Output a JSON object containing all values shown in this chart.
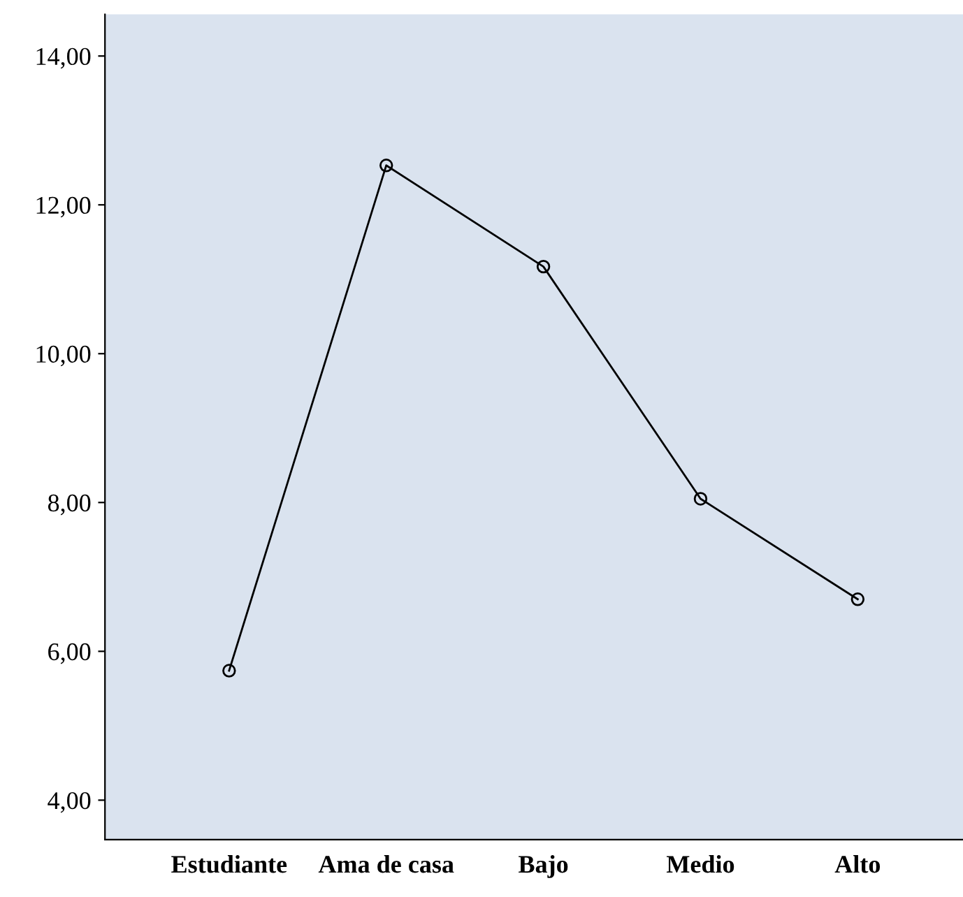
{
  "chart_data": {
    "type": "line",
    "categories": [
      "Estudiante",
      "Ama de casa",
      "Bajo",
      "Medio",
      "Alto"
    ],
    "series": [
      {
        "color": "#000000",
        "values": [
          5.74,
          12.53,
          11.17,
          8.05,
          6.7
        ]
      }
    ],
    "ylim": [
      3.47,
      14.56
    ],
    "yticks": [
      {
        "value": 4,
        "label": "4,00"
      },
      {
        "value": 6,
        "label": "6,00"
      },
      {
        "value": 8,
        "label": "8,00"
      },
      {
        "value": 10,
        "label": "10,00"
      },
      {
        "value": 12,
        "label": "12,00"
      },
      {
        "value": 14,
        "label": "14,00"
      }
    ],
    "marker": "circle",
    "line_style": "solid",
    "grid": false,
    "legend": false
  }
}
